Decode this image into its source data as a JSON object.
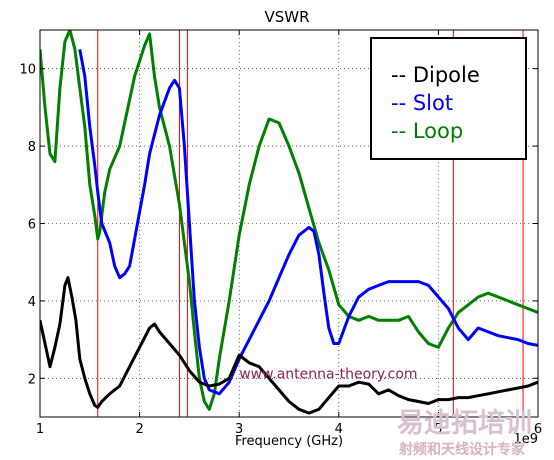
{
  "chart_data": {
    "type": "line",
    "title": "VSWR",
    "xlabel": "Frequency (GHz)",
    "ylabel": "",
    "x_scale_note": "1e9",
    "xlim": [
      1,
      6
    ],
    "ylim": [
      1,
      11
    ],
    "x_ticks": [
      1,
      2,
      3,
      4,
      5,
      6
    ],
    "y_ticks": [
      2,
      4,
      6,
      8,
      10
    ],
    "grid": true,
    "legend_position": "top-right",
    "series": [
      {
        "name": "Dipole",
        "color": "#000000",
        "x": [
          1.0,
          1.05,
          1.1,
          1.15,
          1.2,
          1.25,
          1.28,
          1.32,
          1.36,
          1.4,
          1.45,
          1.5,
          1.55,
          1.58,
          1.62,
          1.7,
          1.8,
          1.9,
          2.0,
          2.1,
          2.15,
          2.2,
          2.3,
          2.4,
          2.5,
          2.6,
          2.7,
          2.8,
          2.9,
          3.0,
          3.1,
          3.2,
          3.3,
          3.4,
          3.5,
          3.6,
          3.7,
          3.8,
          3.9,
          4.0,
          4.1,
          4.2,
          4.3,
          4.4,
          4.5,
          4.6,
          4.7,
          4.8,
          4.9,
          5.0,
          5.1,
          5.2,
          5.3,
          5.4,
          5.5,
          5.6,
          5.7,
          5.8,
          5.9,
          6.0
        ],
        "y": [
          3.5,
          2.9,
          2.3,
          2.8,
          3.4,
          4.4,
          4.6,
          4.1,
          3.5,
          2.5,
          2.0,
          1.6,
          1.3,
          1.25,
          1.4,
          1.6,
          1.8,
          2.3,
          2.8,
          3.3,
          3.4,
          3.2,
          2.9,
          2.6,
          2.2,
          1.9,
          1.8,
          1.85,
          2.0,
          2.6,
          2.4,
          2.3,
          2.0,
          1.7,
          1.4,
          1.2,
          1.1,
          1.2,
          1.5,
          1.8,
          1.8,
          1.9,
          1.85,
          1.6,
          1.7,
          1.55,
          1.45,
          1.4,
          1.35,
          1.45,
          1.45,
          1.5,
          1.5,
          1.55,
          1.6,
          1.65,
          1.7,
          1.75,
          1.8,
          1.9
        ]
      },
      {
        "name": "Slot",
        "color": "#0000ff",
        "x": [
          1.4,
          1.45,
          1.5,
          1.55,
          1.58,
          1.62,
          1.7,
          1.75,
          1.8,
          1.85,
          1.9,
          1.95,
          2.0,
          2.05,
          2.1,
          2.2,
          2.3,
          2.35,
          2.4,
          2.45,
          2.5,
          2.55,
          2.6,
          2.65,
          2.7,
          2.8,
          2.9,
          3.0,
          3.1,
          3.2,
          3.3,
          3.4,
          3.5,
          3.6,
          3.7,
          3.75,
          3.8,
          3.85,
          3.9,
          3.95,
          4.0,
          4.1,
          4.2,
          4.3,
          4.4,
          4.5,
          4.6,
          4.7,
          4.8,
          4.9,
          5.0,
          5.1,
          5.2,
          5.3,
          5.4,
          5.5,
          5.6,
          5.7,
          5.8,
          5.9,
          6.0
        ],
        "y": [
          10.5,
          9.8,
          8.5,
          7.5,
          6.8,
          6.0,
          5.5,
          4.9,
          4.6,
          4.7,
          4.9,
          5.6,
          6.3,
          7.0,
          7.8,
          8.8,
          9.5,
          9.7,
          9.5,
          8.0,
          6.0,
          4.0,
          2.8,
          2.0,
          1.7,
          1.6,
          1.9,
          2.5,
          3.0,
          3.5,
          4.0,
          4.6,
          5.2,
          5.7,
          5.9,
          5.8,
          5.2,
          4.2,
          3.3,
          2.9,
          2.9,
          3.6,
          4.1,
          4.3,
          4.4,
          4.5,
          4.5,
          4.5,
          4.5,
          4.4,
          4.1,
          3.8,
          3.3,
          3.0,
          3.3,
          3.2,
          3.1,
          3.05,
          3.0,
          2.9,
          2.85
        ]
      },
      {
        "name": "Loop",
        "color": "#007f00",
        "x": [
          1.0,
          1.05,
          1.1,
          1.15,
          1.2,
          1.25,
          1.3,
          1.35,
          1.4,
          1.45,
          1.5,
          1.55,
          1.58,
          1.6,
          1.65,
          1.7,
          1.8,
          1.9,
          1.95,
          2.0,
          2.05,
          2.1,
          2.15,
          2.2,
          2.3,
          2.4,
          2.5,
          2.55,
          2.6,
          2.65,
          2.7,
          2.75,
          2.8,
          2.9,
          3.0,
          3.1,
          3.2,
          3.3,
          3.4,
          3.5,
          3.6,
          3.7,
          3.8,
          3.9,
          4.0,
          4.1,
          4.2,
          4.3,
          4.4,
          4.5,
          4.6,
          4.7,
          4.8,
          4.9,
          5.0,
          5.1,
          5.2,
          5.3,
          5.4,
          5.5,
          5.6,
          5.7,
          5.8,
          5.9,
          6.0
        ],
        "y": [
          10.5,
          9.0,
          7.8,
          7.6,
          9.5,
          10.7,
          11.0,
          10.5,
          9.5,
          8.5,
          7.0,
          6.2,
          5.6,
          5.8,
          6.8,
          7.4,
          8.0,
          9.2,
          9.8,
          10.2,
          10.6,
          10.9,
          9.8,
          9.0,
          8.0,
          6.5,
          4.5,
          3.2,
          2.0,
          1.4,
          1.2,
          1.6,
          2.5,
          4.0,
          5.7,
          7.0,
          8.0,
          8.7,
          8.6,
          8.0,
          7.3,
          6.4,
          5.5,
          4.8,
          3.9,
          3.6,
          3.5,
          3.6,
          3.5,
          3.5,
          3.5,
          3.6,
          3.2,
          2.9,
          2.8,
          3.3,
          3.7,
          3.9,
          4.1,
          4.2,
          4.1,
          4.0,
          3.9,
          3.8,
          3.7
        ]
      }
    ],
    "reference_lines": {
      "color": "#ff0000",
      "x": [
        1.58,
        2.4,
        2.48,
        5.15,
        5.85
      ]
    },
    "annotation": {
      "text": "www.antenna-theory.com",
      "color": "#8b2252",
      "x": 3.0,
      "y": 2.0
    }
  },
  "watermark": {
    "line1": "易迪拓培训",
    "line2": "射频和天线设计专家",
    "color1": "#d9c0cf",
    "color2": "#d9b0c4"
  }
}
